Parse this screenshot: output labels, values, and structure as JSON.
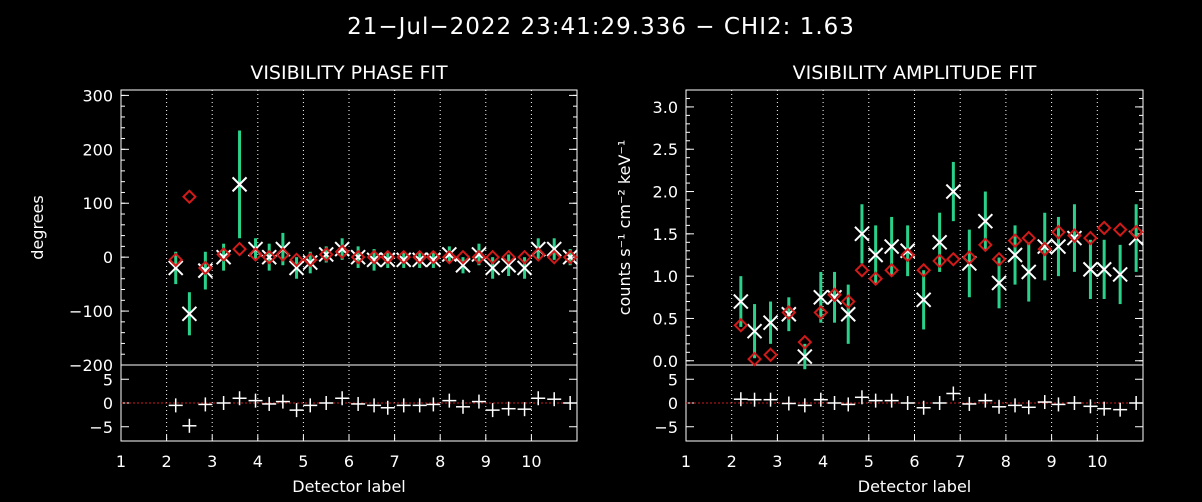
{
  "header": {
    "title": "21−Jul−2022 23:41:29.336 − CHI2: 1.63"
  },
  "colors": {
    "background": "#000000",
    "observed": "#ffffff",
    "error_bar": "#2ad18a",
    "model": "#d11a1a",
    "grid": "#ffffff"
  },
  "chart_data": [
    {
      "type": "scatter",
      "title": "VISIBILITY PHASE FIT",
      "xlabel": "Detector label",
      "ylabel": "degrees",
      "xlim": [
        1,
        11
      ],
      "ylim": [
        -200,
        310
      ],
      "xticks": [
        1,
        2,
        3,
        4,
        5,
        6,
        7,
        8,
        9,
        10
      ],
      "xtick_labels": [
        "1",
        "2",
        "3",
        "4",
        "5",
        "6",
        "7",
        "8",
        "9",
        "10"
      ],
      "yticks": [
        -200,
        -100,
        0,
        100,
        200,
        300
      ],
      "ytick_labels": [
        "−200",
        "−100",
        "0",
        "100",
        "200",
        "300"
      ],
      "grid": "vertical dotted lines at integer detectors",
      "series": [
        {
          "marker": "x",
          "x": [
            2.2,
            2.5,
            2.85,
            3.25,
            3.6,
            3.95,
            4.25,
            4.55,
            4.85,
            5.15,
            5.5,
            5.85,
            6.2,
            6.55,
            6.85,
            7.2,
            7.55,
            7.85,
            8.2,
            8.5,
            8.85,
            9.15,
            9.5,
            9.85,
            10.15,
            10.5,
            10.85
          ],
          "y": [
            -20,
            -105,
            -25,
            0,
            135,
            15,
            0,
            15,
            -20,
            -10,
            5,
            15,
            0,
            -5,
            -5,
            -5,
            -5,
            -5,
            5,
            -15,
            5,
            -20,
            -15,
            -20,
            15,
            15,
            0
          ],
          "yerr": [
            30,
            40,
            35,
            25,
            100,
            20,
            25,
            30,
            20,
            20,
            15,
            20,
            20,
            20,
            15,
            15,
            15,
            15,
            15,
            15,
            20,
            20,
            20,
            20,
            20,
            20,
            15
          ]
        },
        {
          "marker": "diamond",
          "x": [
            2.2,
            2.5,
            2.85,
            3.25,
            3.6,
            3.95,
            4.25,
            4.55,
            4.85,
            5.15,
            5.5,
            5.85,
            6.2,
            6.55,
            6.85,
            7.2,
            7.55,
            7.85,
            8.2,
            8.5,
            8.85,
            9.15,
            9.5,
            9.85,
            10.15,
            10.5,
            10.85
          ],
          "y": [
            -5,
            112,
            -20,
            5,
            15,
            5,
            0,
            5,
            -5,
            -5,
            5,
            10,
            0,
            0,
            0,
            0,
            0,
            0,
            0,
            0,
            0,
            0,
            0,
            0,
            5,
            0,
            0
          ]
        }
      ],
      "residuals": {
        "ylim": [
          -8,
          8
        ],
        "yticks": [
          -5,
          0,
          5
        ],
        "ytick_labels": [
          "−5",
          "0",
          "5"
        ],
        "x": [
          2.2,
          2.5,
          2.85,
          3.25,
          3.6,
          3.95,
          4.25,
          4.55,
          4.85,
          5.15,
          5.5,
          5.85,
          6.2,
          6.55,
          6.85,
          7.2,
          7.55,
          7.85,
          8.2,
          8.5,
          8.85,
          9.15,
          9.5,
          9.85,
          10.15,
          10.5,
          10.85
        ],
        "y": [
          -0.5,
          -4.8,
          -0.3,
          0,
          1,
          0.5,
          -0.2,
          0.3,
          -1.5,
          -0.5,
          0,
          1,
          -0.2,
          -0.5,
          -1,
          -0.5,
          -0.5,
          -0.3,
          0.5,
          -0.8,
          0.3,
          -1.5,
          -1.2,
          -1.3,
          1,
          0.8,
          0
        ]
      }
    },
    {
      "type": "scatter",
      "title": "VISIBILITY AMPLITUDE FIT",
      "xlabel": "Detector label",
      "ylabel": "counts s⁻¹ cm⁻² keV⁻¹",
      "xlim": [
        1,
        11
      ],
      "ylim": [
        -0.05,
        3.2
      ],
      "xticks": [
        1,
        2,
        3,
        4,
        5,
        6,
        7,
        8,
        9,
        10
      ],
      "xtick_labels": [
        "1",
        "2",
        "3",
        "4",
        "5",
        "6",
        "7",
        "8",
        "9",
        "10"
      ],
      "yticks": [
        0,
        0.5,
        1,
        1.5,
        2,
        2.5,
        3
      ],
      "ytick_labels": [
        "0.0",
        "0.5",
        "1.0",
        "1.5",
        "2.0",
        "2.5",
        "3.0"
      ],
      "grid": "vertical dotted lines at integer detectors",
      "series": [
        {
          "marker": "x",
          "x": [
            2.2,
            2.5,
            2.85,
            3.25,
            3.6,
            3.95,
            4.25,
            4.55,
            4.85,
            5.15,
            5.5,
            5.85,
            6.2,
            6.55,
            6.85,
            7.2,
            7.55,
            7.85,
            8.2,
            8.5,
            8.85,
            9.15,
            9.5,
            9.85,
            10.15,
            10.5,
            10.85
          ],
          "y": [
            0.7,
            0.35,
            0.45,
            0.55,
            0.05,
            0.75,
            0.75,
            0.55,
            1.5,
            1.25,
            1.35,
            1.3,
            0.72,
            1.4,
            2.0,
            1.15,
            1.65,
            0.92,
            1.25,
            1.05,
            1.35,
            1.35,
            1.45,
            1.08,
            1.08,
            1.02,
            1.45
          ],
          "yerr": [
            0.3,
            0.32,
            0.25,
            0.2,
            0.15,
            0.3,
            0.3,
            0.35,
            0.35,
            0.35,
            0.35,
            0.3,
            0.35,
            0.35,
            0.35,
            0.4,
            0.35,
            0.3,
            0.35,
            0.35,
            0.4,
            0.35,
            0.4,
            0.35,
            0.35,
            0.35,
            0.4
          ]
        },
        {
          "marker": "diamond",
          "x": [
            2.2,
            2.5,
            2.85,
            3.25,
            3.6,
            3.95,
            4.25,
            4.55,
            4.85,
            5.15,
            5.5,
            5.85,
            6.2,
            6.55,
            6.85,
            7.2,
            7.55,
            7.85,
            8.2,
            8.5,
            8.85,
            9.15,
            9.5,
            9.85,
            10.15,
            10.5,
            10.85
          ],
          "y": [
            0.42,
            0.02,
            0.07,
            0.57,
            0.22,
            0.57,
            0.78,
            0.7,
            1.07,
            0.97,
            1.07,
            1.25,
            1.07,
            1.18,
            1.2,
            1.22,
            1.37,
            1.2,
            1.42,
            1.45,
            1.32,
            1.52,
            1.48,
            1.45,
            1.57,
            1.55,
            1.52
          ]
        }
      ],
      "residuals": {
        "ylim": [
          -8,
          8
        ],
        "yticks": [
          -5,
          0,
          5
        ],
        "ytick_labels": [
          "−5",
          "0",
          "5"
        ],
        "x": [
          2.2,
          2.5,
          2.85,
          3.25,
          3.6,
          3.95,
          4.25,
          4.55,
          4.85,
          5.15,
          5.5,
          5.85,
          6.2,
          6.55,
          6.85,
          7.2,
          7.55,
          7.85,
          8.2,
          8.5,
          8.85,
          9.15,
          9.5,
          9.85,
          10.15,
          10.5,
          10.85
        ],
        "y": [
          0.8,
          0.7,
          0.7,
          -0.1,
          -0.5,
          0.7,
          0,
          -0.3,
          1.2,
          0.5,
          0.5,
          0,
          -1,
          0,
          2,
          -0.2,
          0.5,
          -0.8,
          -0.5,
          -0.9,
          0.2,
          -0.3,
          0,
          -0.7,
          -1.2,
          -1.4,
          0
        ]
      }
    }
  ]
}
